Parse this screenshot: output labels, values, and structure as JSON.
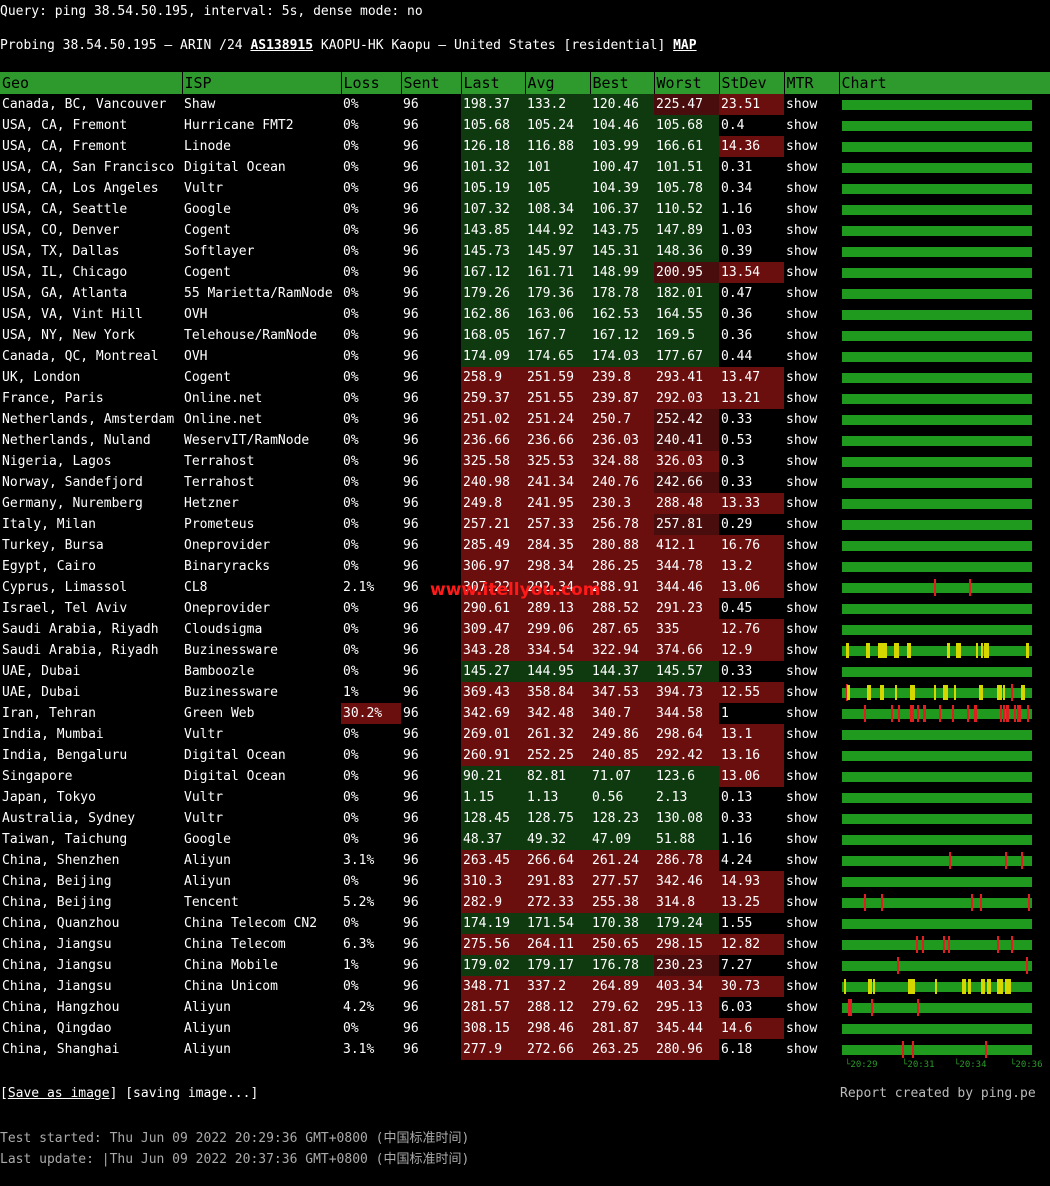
{
  "query": "Query: ping 38.54.50.195, interval: 5s, dense mode: no",
  "probe": {
    "prefix": "Probing 38.54.50.195 — ARIN /24 ",
    "asn": "AS138915",
    "desc": " KAOPU-HK Kaopu — United States [residential] ",
    "map": "MAP"
  },
  "headers": [
    "Geo",
    "ISP",
    "Loss",
    "Sent",
    "Last",
    "Avg",
    "Best",
    "Worst",
    "StDev",
    "MTR",
    "Chart"
  ],
  "mtr_label": "show",
  "colors": {
    "header": "#2e9a2e",
    "green": "#0f3a0f",
    "red": "#6b0e0e",
    "bar_green": "#1f9a1f",
    "bar_yellow": "#d6d600",
    "bar_red": "#e02020",
    "mtr": "#19d619"
  },
  "rows": [
    [
      "Canada, BC, Vancouver",
      "Shaw",
      "0%",
      "96",
      "198.37",
      "133.2",
      "120.46",
      "225.47",
      "23.51"
    ],
    [
      "USA, CA, Fremont",
      "Hurricane FMT2",
      "0%",
      "96",
      "105.68",
      "105.24",
      "104.46",
      "105.68",
      "0.4"
    ],
    [
      "USA, CA, Fremont",
      "Linode",
      "0%",
      "96",
      "126.18",
      "116.88",
      "103.99",
      "166.61",
      "14.36"
    ],
    [
      "USA, CA, San Francisco",
      "Digital Ocean",
      "0%",
      "96",
      "101.32",
      "101",
      "100.47",
      "101.51",
      "0.31"
    ],
    [
      "USA, CA, Los Angeles",
      "Vultr",
      "0%",
      "96",
      "105.19",
      "105",
      "104.39",
      "105.78",
      "0.34"
    ],
    [
      "USA, CA, Seattle",
      "Google",
      "0%",
      "96",
      "107.32",
      "108.34",
      "106.37",
      "110.52",
      "1.16"
    ],
    [
      "USA, CO, Denver",
      "Cogent",
      "0%",
      "96",
      "143.85",
      "144.92",
      "143.75",
      "147.89",
      "1.03"
    ],
    [
      "USA, TX, Dallas",
      "Softlayer",
      "0%",
      "96",
      "145.73",
      "145.97",
      "145.31",
      "148.36",
      "0.39"
    ],
    [
      "USA, IL, Chicago",
      "Cogent",
      "0%",
      "96",
      "167.12",
      "161.71",
      "148.99",
      "200.95",
      "13.54"
    ],
    [
      "USA, GA, Atlanta",
      "55 Marietta/RamNode",
      "0%",
      "96",
      "179.26",
      "179.36",
      "178.78",
      "182.01",
      "0.47"
    ],
    [
      "USA, VA, Vint Hill",
      "OVH",
      "0%",
      "96",
      "162.86",
      "163.06",
      "162.53",
      "164.55",
      "0.36"
    ],
    [
      "USA, NY, New York",
      "Telehouse/RamNode",
      "0%",
      "96",
      "168.05",
      "167.7",
      "167.12",
      "169.5",
      "0.36"
    ],
    [
      "Canada, QC, Montreal",
      "OVH",
      "0%",
      "96",
      "174.09",
      "174.65",
      "174.03",
      "177.67",
      "0.44"
    ],
    [
      "UK, London",
      "Cogent",
      "0%",
      "96",
      "258.9",
      "251.59",
      "239.8",
      "293.41",
      "13.47"
    ],
    [
      "France, Paris",
      "Online.net",
      "0%",
      "96",
      "259.37",
      "251.55",
      "239.87",
      "292.03",
      "13.21"
    ],
    [
      "Netherlands, Amsterdam",
      "Online.net",
      "0%",
      "96",
      "251.02",
      "251.24",
      "250.7",
      "252.42",
      "0.33"
    ],
    [
      "Netherlands, Nuland",
      "WeservIT/RamNode",
      "0%",
      "96",
      "236.66",
      "236.66",
      "236.03",
      "240.41",
      "0.53"
    ],
    [
      "Nigeria, Lagos",
      "Terrahost",
      "0%",
      "96",
      "325.58",
      "325.53",
      "324.88",
      "326.03",
      "0.3"
    ],
    [
      "Norway, Sandefjord",
      "Terrahost",
      "0%",
      "96",
      "240.98",
      "241.34",
      "240.76",
      "242.66",
      "0.33"
    ],
    [
      "Germany, Nuremberg",
      "Hetzner",
      "0%",
      "96",
      "249.8",
      "241.95",
      "230.3",
      "288.48",
      "13.33"
    ],
    [
      "Italy, Milan",
      "Prometeus",
      "0%",
      "96",
      "257.21",
      "257.33",
      "256.78",
      "257.81",
      "0.29"
    ],
    [
      "Turkey, Bursa",
      "Oneprovider",
      "0%",
      "96",
      "285.49",
      "284.35",
      "280.88",
      "412.1",
      "16.76"
    ],
    [
      "Egypt, Cairo",
      "Binaryracks",
      "0%",
      "96",
      "306.97",
      "298.34",
      "286.25",
      "344.78",
      "13.2"
    ],
    [
      "Cyprus, Limassol",
      "CL8",
      "2.1%",
      "96",
      "307.22",
      "292.34",
      "288.91",
      "344.46",
      "13.06"
    ],
    [
      "Israel, Tel Aviv",
      "Oneprovider",
      "0%",
      "96",
      "290.61",
      "289.13",
      "288.52",
      "291.23",
      "0.45"
    ],
    [
      "Saudi Arabia, Riyadh",
      "Cloudsigma",
      "0%",
      "96",
      "309.47",
      "299.06",
      "287.65",
      "335",
      "12.76"
    ],
    [
      "Saudi Arabia, Riyadh",
      "Buzinessware",
      "0%",
      "96",
      "343.28",
      "334.54",
      "322.94",
      "374.66",
      "12.9"
    ],
    [
      "UAE, Dubai",
      "Bamboozle",
      "0%",
      "96",
      "145.27",
      "144.95",
      "144.37",
      "145.57",
      "0.33"
    ],
    [
      "UAE, Dubai",
      "Buzinessware",
      "1%",
      "96",
      "369.43",
      "358.84",
      "347.53",
      "394.73",
      "12.55"
    ],
    [
      "Iran, Tehran",
      "Green Web",
      "30.2%",
      "96",
      "342.69",
      "342.48",
      "340.7",
      "344.58",
      "1"
    ],
    [
      "India, Mumbai",
      "Vultr",
      "0%",
      "96",
      "269.01",
      "261.32",
      "249.86",
      "298.64",
      "13.1"
    ],
    [
      "India, Bengaluru",
      "Digital Ocean",
      "0%",
      "96",
      "260.91",
      "252.25",
      "240.85",
      "292.42",
      "13.16"
    ],
    [
      "Singapore",
      "Digital Ocean",
      "0%",
      "96",
      "90.21",
      "82.81",
      "71.07",
      "123.6",
      "13.06"
    ],
    [
      "Japan, Tokyo",
      "Vultr",
      "0%",
      "96",
      "1.15",
      "1.13",
      "0.56",
      "2.13",
      "0.13"
    ],
    [
      "Australia, Sydney",
      "Vultr",
      "0%",
      "96",
      "128.45",
      "128.75",
      "128.23",
      "130.08",
      "0.33"
    ],
    [
      "Taiwan, Taichung",
      "Google",
      "0%",
      "96",
      "48.37",
      "49.32",
      "47.09",
      "51.88",
      "1.16"
    ],
    [
      "China, Shenzhen",
      "Aliyun",
      "3.1%",
      "96",
      "263.45",
      "266.64",
      "261.24",
      "286.78",
      "4.24"
    ],
    [
      "China, Beijing",
      "Aliyun",
      "0%",
      "96",
      "310.3",
      "291.83",
      "277.57",
      "342.46",
      "14.93"
    ],
    [
      "China, Beijing",
      "Tencent",
      "5.2%",
      "96",
      "282.9",
      "272.33",
      "255.38",
      "314.8",
      "13.25"
    ],
    [
      "China, Quanzhou",
      "China Telecom CN2",
      "0%",
      "96",
      "174.19",
      "171.54",
      "170.38",
      "179.24",
      "1.55"
    ],
    [
      "China, Jiangsu",
      "China Telecom",
      "6.3%",
      "96",
      "275.56",
      "264.11",
      "250.65",
      "298.15",
      "12.82"
    ],
    [
      "China, Jiangsu",
      "China Mobile",
      "1%",
      "96",
      "179.02",
      "179.17",
      "176.78",
      "230.23",
      "7.27"
    ],
    [
      "China, Jiangsu",
      "China Unicom",
      "0%",
      "96",
      "348.71",
      "337.2",
      "264.89",
      "403.34",
      "30.73"
    ],
    [
      "China, Hangzhou",
      "Aliyun",
      "4.2%",
      "96",
      "281.57",
      "288.12",
      "279.62",
      "295.13",
      "6.03"
    ],
    [
      "China, Qingdao",
      "Aliyun",
      "0%",
      "96",
      "308.15",
      "298.46",
      "281.87",
      "345.44",
      "14.6"
    ],
    [
      "China, Shanghai",
      "Aliyun",
      "3.1%",
      "96",
      "277.9",
      "272.66",
      "263.25",
      "280.96",
      "6.18"
    ]
  ],
  "chart_ticks": [
    "└20:29",
    "└20:31",
    "└20:34",
    "└20:36"
  ],
  "watermark": "www.itellyou.com",
  "footer": {
    "save": "Save as image",
    "saving": "[saving image...]",
    "report": "Report created by ping.pe"
  },
  "started": "Test started: Thu Jun 09 2022 20:29:36 GMT+0800 (中国标准时间)",
  "updated": "Last update: |Thu Jun 09 2022 20:37:36 GMT+0800 (中国标准时间)"
}
